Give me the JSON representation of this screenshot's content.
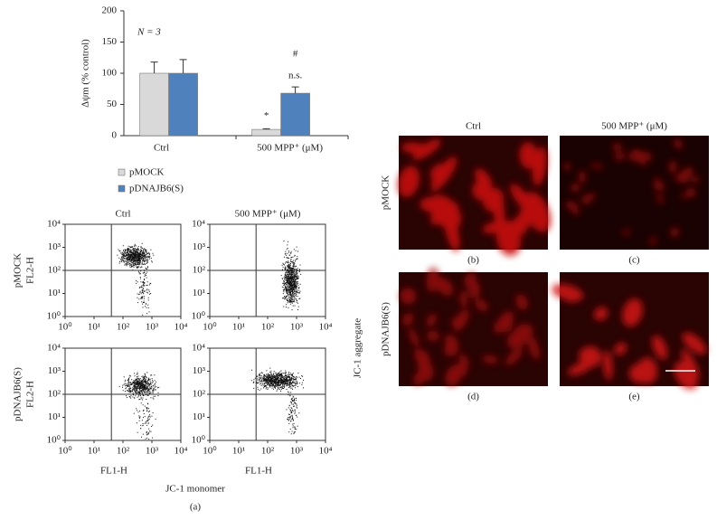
{
  "chart_data": {
    "type": "bar",
    "ylabel": "Δψm (% control)",
    "categories": [
      "Ctrl",
      "500 MPP⁺ (μM)"
    ],
    "series": [
      {
        "name": "pMOCK",
        "color": "#d9d9d9",
        "values": [
          100,
          10
        ],
        "errors": [
          18,
          1
        ]
      },
      {
        "name": "pDNAJB6(S)",
        "color": "#4f81bd",
        "values": [
          100,
          68
        ],
        "errors": [
          22,
          10
        ]
      }
    ],
    "ylim": [
      0,
      200
    ],
    "yticks": [
      0,
      50,
      100,
      150,
      200
    ],
    "annotations": [
      "N = 3",
      "*",
      "n.s.",
      "#"
    ]
  },
  "flow_panel": {
    "column_labels": [
      "Ctrl",
      "500 MPP⁺ (μM)"
    ],
    "row_labels": [
      "pMOCK",
      "pDNAJB6(S)"
    ],
    "y_axis_label": "FL2-H",
    "x_axis_label": "FL1-H",
    "xlabel": "JC-1 monomer",
    "side_label": "JC-1 aggregate",
    "panel_label": "(a)",
    "log": true,
    "lim": [
      1,
      10000
    ],
    "ticks": [
      {
        "value": 1,
        "label": "10⁰"
      },
      {
        "value": 10,
        "label": "10¹"
      },
      {
        "value": 100,
        "label": "10²"
      },
      {
        "value": 1000,
        "label": "10³"
      },
      {
        "value": 10000,
        "label": "10⁴"
      }
    ]
  },
  "images": {
    "column_labels": [
      "Ctrl",
      "500 MPP⁺ (μM)"
    ],
    "row_labels": [
      "pMOCK",
      "pDNAJB6(S)"
    ],
    "panels": [
      "(b)",
      "(c)",
      "(d)",
      "(e)"
    ]
  }
}
